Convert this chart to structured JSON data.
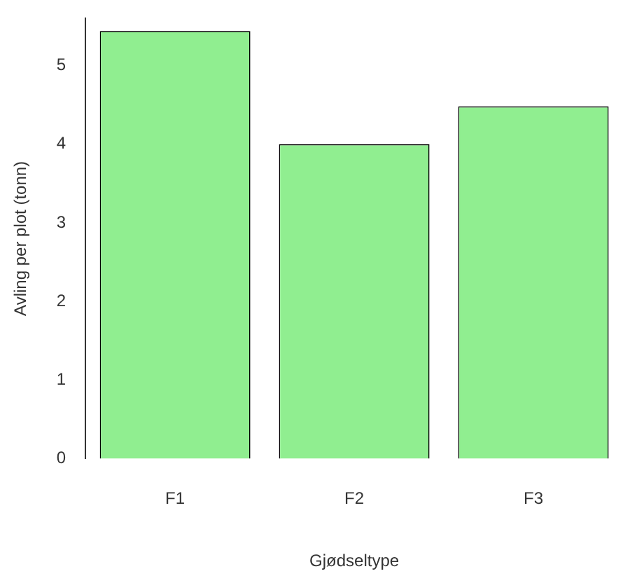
{
  "chart_data": {
    "type": "bar",
    "xlabel": "Gjødseltype",
    "ylabel": "Avling per plot (tonn)",
    "categories": [
      "F1",
      "F2",
      "F3"
    ],
    "values": [
      5.44,
      4.0,
      4.48
    ],
    "color": "#90ee90",
    "ylim": [
      0,
      5.6
    ],
    "yticks": [
      0,
      1,
      2,
      3,
      4,
      5
    ],
    "grid": false,
    "legend": false
  }
}
